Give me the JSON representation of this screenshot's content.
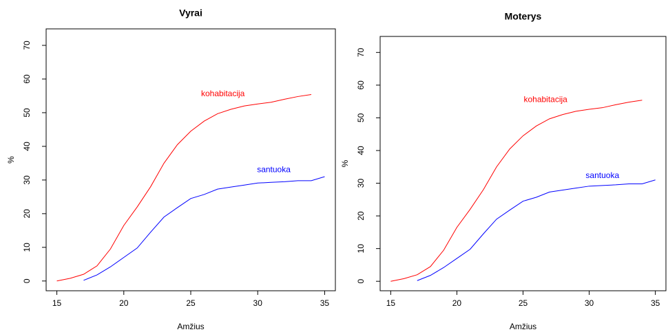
{
  "chart_data": [
    {
      "type": "line",
      "title": "Vyrai",
      "xlabel": "Amžius",
      "ylabel": "%",
      "x": [
        15,
        16,
        17,
        18,
        19,
        20,
        21,
        22,
        23,
        24,
        25,
        26,
        27,
        28,
        29,
        30,
        31,
        32,
        33,
        34,
        35
      ],
      "series": [
        {
          "name": "kohabitacija",
          "color": "#ff0000",
          "values": [
            0,
            0.8,
            2,
            4.5,
            9.5,
            16.5,
            22,
            28,
            35,
            40.5,
            44.5,
            47.5,
            49.7,
            51,
            52,
            52.6,
            53.1,
            54,
            54.8,
            55.4,
            null
          ]
        },
        {
          "name": "santuoka",
          "color": "#0000ff",
          "values": [
            null,
            null,
            0.2,
            1.8,
            4.2,
            7,
            9.8,
            14.5,
            19,
            21.8,
            24.5,
            25.7,
            27.3,
            27.9,
            28.5,
            29.1,
            29.3,
            29.5,
            29.8,
            29.8,
            31
          ]
        }
      ],
      "annotations": [
        {
          "text": "kohabitacija",
          "x": 27.4,
          "y": 55.5,
          "color": "#ff0000"
        },
        {
          "text": "santuoka",
          "x": 31.2,
          "y": 33,
          "color": "#0000ff"
        }
      ],
      "xlim": [
        14.2,
        35.8
      ],
      "xticks": [
        15,
        20,
        25,
        30,
        35
      ],
      "ylim": [
        -2.9,
        74.9
      ],
      "yticks": [
        0,
        10,
        20,
        30,
        40,
        50,
        60,
        70
      ]
    },
    {
      "type": "line",
      "title": "Moterys",
      "xlabel": "Amžius",
      "ylabel": "%",
      "x": [
        15,
        16,
        17,
        18,
        19,
        20,
        21,
        22,
        23,
        24,
        25,
        26,
        27,
        28,
        29,
        30,
        31,
        32,
        33,
        34,
        35
      ],
      "series": [
        {
          "name": "kohabitacija",
          "color": "#ff0000",
          "values": [
            0,
            0.8,
            2,
            4.5,
            9.5,
            16.5,
            22,
            28,
            35,
            40.5,
            44.5,
            47.5,
            49.7,
            51,
            52,
            52.6,
            53.1,
            54,
            54.8,
            55.4,
            null
          ]
        },
        {
          "name": "santuoka",
          "color": "#0000ff",
          "values": [
            null,
            null,
            0.2,
            1.8,
            4.2,
            7,
            9.8,
            14.5,
            19,
            21.8,
            24.5,
            25.7,
            27.3,
            27.9,
            28.5,
            29.1,
            29.3,
            29.5,
            29.8,
            29.8,
            31
          ]
        }
      ],
      "annotations": [
        {
          "text": "kohabitacija",
          "x": 26.7,
          "y": 55.5,
          "color": "#ff0000"
        },
        {
          "text": "santuoka",
          "x": 31.0,
          "y": 32.3,
          "color": "#0000ff"
        }
      ],
      "xlim": [
        14.2,
        35.8
      ],
      "xticks": [
        15,
        20,
        25,
        30,
        35
      ],
      "ylim": [
        -2.9,
        74.9
      ],
      "yticks": [
        0,
        10,
        20,
        30,
        40,
        50,
        60,
        70
      ]
    }
  ]
}
